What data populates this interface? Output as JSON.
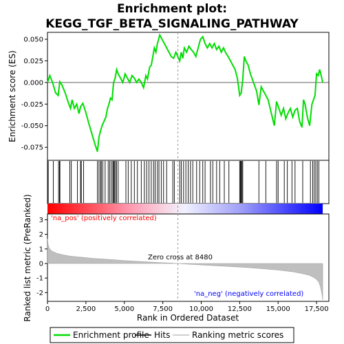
{
  "chart_data": {
    "type": "line",
    "title_line1": "Enrichment plot:",
    "title_line2": "KEGG_TGF_BETA_SIGNALING_PATHWAY",
    "top_panel": {
      "ylabel": "Enrichment score (ES)",
      "ylim": [
        -0.09,
        0.058
      ],
      "yticks": [
        0.05,
        0.025,
        0.0,
        -0.025,
        -0.05,
        -0.075
      ],
      "ytick_labels": [
        "0.050",
        "0.025",
        "0.000",
        "-0.025",
        "-0.050",
        "-0.075"
      ],
      "series": [
        {
          "name": "Enrichment profile",
          "color": "#00dd00",
          "x": [
            0,
            150,
            330,
            530,
            700,
            800,
            950,
            1150,
            1350,
            1500,
            1600,
            1750,
            1900,
            2050,
            2150,
            2300,
            2500,
            2700,
            2900,
            3100,
            3250,
            3350,
            3450,
            3550,
            3650,
            3800,
            3900,
            4000,
            4100,
            4200,
            4300,
            4400,
            4500,
            4600,
            4750,
            4900,
            5050,
            5200,
            5350,
            5500,
            5650,
            5800,
            5950,
            6100,
            6250,
            6400,
            6500,
            6650,
            6750,
            6850,
            6950,
            7050,
            7150,
            7300,
            7450,
            7600,
            7750,
            7900,
            8050,
            8200,
            8350,
            8480,
            8600,
            8700,
            8800,
            8900,
            9050,
            9200,
            9350,
            9500,
            9650,
            9800,
            9950,
            10100,
            10250,
            10400,
            10550,
            10700,
            10850,
            11000,
            11150,
            11300,
            11450,
            11600,
            11750,
            11900,
            12050,
            12200,
            12350,
            12500,
            12600,
            12700,
            12800,
            12900,
            13050,
            13200,
            13400,
            13600,
            13750,
            13900,
            14050,
            14200,
            14350,
            14550,
            14750,
            14900,
            15050,
            15200,
            15350,
            15500,
            15650,
            15800,
            15950,
            16100,
            16250,
            16400,
            16550,
            16650,
            16750,
            16900,
            17050,
            17200,
            17300,
            17400,
            17500,
            17600,
            17700,
            17800,
            17900
          ],
          "y": [
            0.0,
            0.008,
            0.0,
            -0.012,
            -0.015,
            0.001,
            -0.003,
            -0.012,
            -0.023,
            -0.03,
            -0.02,
            -0.03,
            -0.025,
            -0.036,
            -0.028,
            -0.024,
            -0.035,
            -0.048,
            -0.06,
            -0.072,
            -0.08,
            -0.063,
            -0.056,
            -0.05,
            -0.046,
            -0.04,
            -0.03,
            -0.025,
            -0.018,
            -0.02,
            0.0,
            0.005,
            0.015,
            0.01,
            0.005,
            0.0,
            0.01,
            0.005,
            0.0,
            0.008,
            0.005,
            0.0,
            0.004,
            0.0,
            -0.006,
            0.008,
            0.004,
            0.018,
            0.02,
            0.03,
            0.04,
            0.035,
            0.045,
            0.055,
            0.05,
            0.045,
            0.04,
            0.035,
            0.03,
            0.028,
            0.035,
            0.03,
            0.025,
            0.035,
            0.028,
            0.04,
            0.035,
            0.042,
            0.038,
            0.035,
            0.03,
            0.04,
            0.05,
            0.053,
            0.045,
            0.04,
            0.045,
            0.04,
            0.045,
            0.038,
            0.042,
            0.035,
            0.04,
            0.034,
            0.03,
            0.025,
            0.02,
            0.015,
            0.005,
            -0.015,
            -0.012,
            0.003,
            0.03,
            0.025,
            0.02,
            0.01,
            0.0,
            -0.01,
            -0.026,
            -0.005,
            -0.01,
            -0.015,
            -0.02,
            -0.035,
            -0.05,
            -0.022,
            -0.03,
            -0.038,
            -0.03,
            -0.042,
            -0.035,
            -0.03,
            -0.04,
            -0.032,
            -0.03,
            -0.045,
            -0.052,
            -0.02,
            -0.025,
            -0.04,
            -0.05,
            -0.025,
            -0.02,
            -0.015,
            0.01,
            0.008,
            0.015,
            0.008,
            0.0
          ]
        }
      ]
    },
    "hits_panel": {
      "name": "Hits",
      "positions": [
        50,
        380,
        720,
        780,
        810,
        1450,
        1550,
        1950,
        2150,
        2200,
        2350,
        3250,
        3350,
        3450,
        3500,
        3600,
        3750,
        3950,
        4050,
        4150,
        4250,
        4300,
        4350,
        4420,
        4500,
        4600,
        5100,
        5250,
        5450,
        5650,
        5850,
        6100,
        6300,
        6450,
        6600,
        6750,
        6900,
        7000,
        7150,
        7250,
        7400,
        7550,
        7750,
        8150,
        8250,
        8600,
        8700,
        8850,
        9000,
        9150,
        9300,
        9450,
        9700,
        9900,
        10100,
        10250,
        10600,
        10750,
        11000,
        11200,
        11500,
        11800,
        12500,
        12550,
        12600,
        12650,
        12700,
        13750,
        14200,
        14900,
        15000,
        15400,
        15600,
        15900,
        16100,
        16600,
        17100,
        17250,
        17350,
        17450,
        17550,
        17650
      ]
    },
    "ranked_panel": {
      "ylabel": "Ranked list metric (PreRanked)",
      "ylim": [
        -2.6,
        3.4
      ],
      "yticks": [
        3,
        2,
        1,
        0,
        -1,
        -2
      ],
      "ytick_labels": [
        "3",
        "2",
        "1",
        "0",
        "-1",
        "-2"
      ],
      "series": [
        {
          "name": "Ranking metric scores",
          "color": "#bfbfbf",
          "x": [
            0,
            30,
            80,
            150,
            300,
            600,
            1000,
            1500,
            2000,
            3000,
            4000,
            5000,
            6000,
            7000,
            8000,
            8480,
            9000,
            10000,
            11000,
            12000,
            13000,
            14000,
            15000,
            16000,
            16500,
            17000,
            17300,
            17500,
            17650,
            17750,
            17850,
            17900
          ],
          "y": [
            1.7,
            1.4,
            1.15,
            1.0,
            0.85,
            0.7,
            0.6,
            0.5,
            0.45,
            0.35,
            0.28,
            0.2,
            0.14,
            0.08,
            0.03,
            0.0,
            -0.04,
            -0.1,
            -0.16,
            -0.22,
            -0.28,
            -0.36,
            -0.45,
            -0.58,
            -0.68,
            -0.8,
            -0.95,
            -1.1,
            -1.3,
            -1.6,
            -2.1,
            -2.5
          ]
        }
      ],
      "pos_label": "'na_pos' (positively correlated)",
      "neg_label": "'na_neg' (negatively correlated)",
      "zero_cross_label": "Zero cross at 8480",
      "zero_cross": 8480
    },
    "xlabel": "Rank in Ordered Dataset",
    "xlim": [
      0,
      18300
    ],
    "xticks": [
      0,
      2500,
      5000,
      7500,
      10000,
      12500,
      15000,
      17500
    ],
    "xtick_labels": [
      "0",
      "2,500",
      "5,000",
      "7,500",
      "10,000",
      "12,500",
      "15,000",
      "17,500"
    ],
    "n_genes": 17900,
    "legend": {
      "placement": "bottom",
      "items": [
        {
          "label": "Enrichment profile",
          "color": "#00dd00",
          "kind": "line"
        },
        {
          "label": "Hits",
          "color": "#000000",
          "kind": "line"
        },
        {
          "label": "Ranking metric scores",
          "color": "#bfbfbf",
          "kind": "line"
        }
      ]
    },
    "colors": {
      "pos_text": "#ff0000",
      "neg_text": "#0000ff",
      "pos_band": "#ff0000",
      "neg_band": "#0000ff"
    }
  }
}
